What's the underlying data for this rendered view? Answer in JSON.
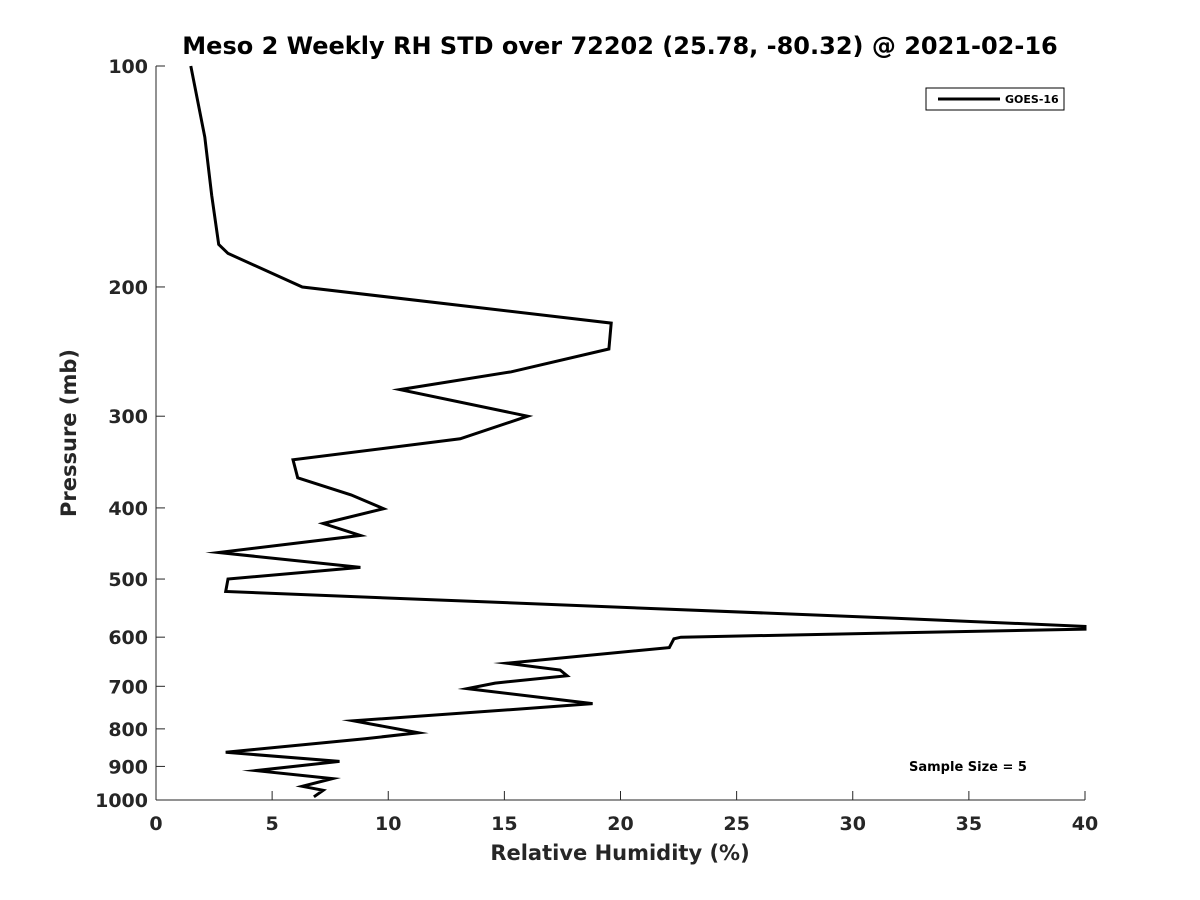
{
  "chart_data": {
    "type": "line",
    "title": "Meso 2 Weekly RH STD over 72202 (25.78, -80.32) @ 2021-02-16",
    "xlabel": "Relative Humidity (%)",
    "ylabel": "Pressure (mb)",
    "xlim": [
      0,
      40
    ],
    "ylim": [
      100,
      1000
    ],
    "yscale": "log",
    "yreversed": true,
    "grid": false,
    "legend_position": "top-right",
    "xticks": [
      0,
      5,
      10,
      15,
      20,
      25,
      30,
      35,
      40
    ],
    "xtick_labels": [
      "0",
      "5",
      "10",
      "15",
      "20",
      "25",
      "30",
      "35",
      "40"
    ],
    "yticks": [
      100,
      200,
      300,
      400,
      500,
      600,
      700,
      800,
      900,
      1000
    ],
    "ytick_labels": [
      "100",
      "200",
      "300",
      "400",
      "500",
      "600",
      "700",
      "800",
      "900",
      "1000"
    ],
    "annotation": "Sample Size = 5",
    "series": [
      {
        "name": "GOES-16",
        "color": "#000000",
        "points": [
          [
            1.5,
            100
          ],
          [
            2.1,
            125
          ],
          [
            2.4,
            150
          ],
          [
            2.7,
            175
          ],
          [
            3.1,
            180
          ],
          [
            6.3,
            200
          ],
          [
            19.6,
            224
          ],
          [
            19.5,
            243
          ],
          [
            15.3,
            261
          ],
          [
            10.5,
            276
          ],
          [
            16.0,
            300
          ],
          [
            13.1,
            322
          ],
          [
            5.9,
            344
          ],
          [
            6.1,
            364
          ],
          [
            8.4,
            384
          ],
          [
            9.8,
            401
          ],
          [
            7.2,
            420
          ],
          [
            8.8,
            436
          ],
          [
            2.7,
            460
          ],
          [
            8.8,
            482
          ],
          [
            3.1,
            500
          ],
          [
            3.0,
            520
          ],
          [
            31.6,
            565
          ],
          [
            40.0,
            580
          ],
          [
            40.0,
            585
          ],
          [
            22.6,
            600
          ],
          [
            22.3,
            603
          ],
          [
            22.1,
            620
          ],
          [
            15.1,
            651
          ],
          [
            17.4,
            665
          ],
          [
            17.7,
            677
          ],
          [
            14.6,
            693
          ],
          [
            13.4,
            705
          ],
          [
            18.8,
            739
          ],
          [
            15.6,
            752
          ],
          [
            8.5,
            780
          ],
          [
            11.3,
            810
          ],
          [
            9.0,
            825
          ],
          [
            3.0,
            861
          ],
          [
            7.9,
            886
          ],
          [
            4.3,
            912
          ],
          [
            7.6,
            935
          ],
          [
            6.3,
            958
          ],
          [
            7.2,
            970
          ],
          [
            6.8,
            990
          ]
        ]
      }
    ]
  }
}
